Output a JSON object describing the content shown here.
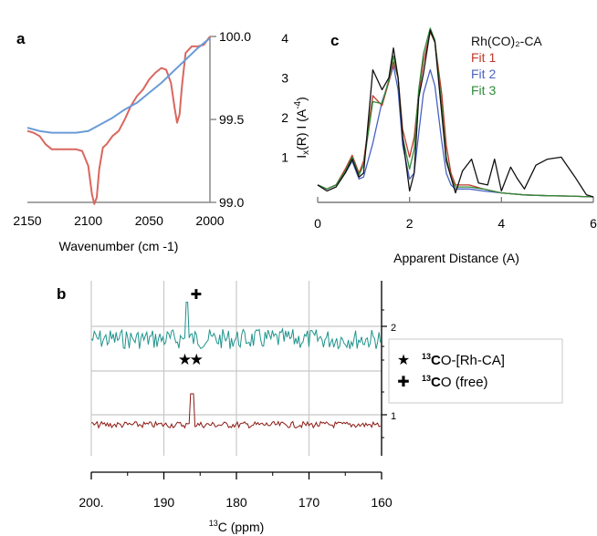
{
  "panels": {
    "a": {
      "letter": "a"
    },
    "b": {
      "letter": "b"
    },
    "c": {
      "letter": "c"
    }
  },
  "colors": {
    "ir_red": "#d9675f",
    "ir_blue": "#6a9bd8",
    "exafs_black": "#111111",
    "fit1": "#c0392b",
    "fit2": "#4a62c4",
    "fit3": "#2e8b3a",
    "nmr_top": "#1f948d",
    "nmr_bottom": "#8b1a14",
    "grid": "#c8c8c8"
  },
  "chart_data": [
    {
      "id": "a",
      "type": "line",
      "xlabel": "Wavenumber (cm -1)",
      "ylabel": "",
      "xlim": [
        2150,
        2000
      ],
      "ylim": [
        99.0,
        100.0
      ],
      "x_ticks": [
        "2150",
        "2100",
        "2050",
        "2000"
      ],
      "y_ticks": [
        "99.0",
        "99.5",
        "100.0"
      ],
      "grid": false,
      "series": [
        {
          "color_key": "ir_red",
          "x": [
            2150,
            2145,
            2140,
            2135,
            2130,
            2125,
            2120,
            2115,
            2110,
            2105,
            2100,
            2097,
            2095,
            2093,
            2091,
            2088,
            2085,
            2080,
            2075,
            2070,
            2065,
            2060,
            2055,
            2050,
            2045,
            2040,
            2036,
            2032,
            2029,
            2027,
            2025,
            2023,
            2020,
            2015,
            2010,
            2005,
            2000
          ],
          "y": [
            99.43,
            99.42,
            99.4,
            99.35,
            99.32,
            99.32,
            99.32,
            99.32,
            99.32,
            99.31,
            99.22,
            99.05,
            98.99,
            99.03,
            99.2,
            99.33,
            99.35,
            99.4,
            99.43,
            99.5,
            99.58,
            99.64,
            99.68,
            99.74,
            99.78,
            99.81,
            99.8,
            99.72,
            99.57,
            99.48,
            99.53,
            99.7,
            99.9,
            99.94,
            99.94,
            99.95,
            100.0
          ]
        },
        {
          "color_key": "ir_blue",
          "x": [
            2150,
            2140,
            2130,
            2120,
            2110,
            2100,
            2090,
            2080,
            2070,
            2060,
            2050,
            2040,
            2030,
            2020,
            2010,
            2000
          ],
          "y": [
            99.45,
            99.43,
            99.42,
            99.42,
            99.42,
            99.43,
            99.47,
            99.51,
            99.56,
            99.6,
            99.66,
            99.72,
            99.79,
            99.86,
            99.93,
            99.99
          ]
        }
      ]
    },
    {
      "id": "c",
      "type": "line",
      "xlabel": "Apparent Distance (A)",
      "ylabel": "I_x(R) I (A^-4)",
      "xlim": [
        0,
        6
      ],
      "ylim": [
        0,
        4.5
      ],
      "x_ticks": [
        "0",
        "2",
        "4",
        "6"
      ],
      "y_ticks": [
        "1",
        "2",
        "3",
        "4"
      ],
      "grid": false,
      "legend_position": "top-right",
      "legend": [
        {
          "label": "Rh(CO)₂-CA",
          "color_key": "exafs_black"
        },
        {
          "label": "Fit 1",
          "color_key": "fit1"
        },
        {
          "label": "Fit 2",
          "color_key": "fit2"
        },
        {
          "label": "Fit 3",
          "color_key": "fit3"
        }
      ],
      "series": [
        {
          "name": "Rh(CO)₂-CA",
          "color_key": "exafs_black",
          "x": [
            0,
            0.2,
            0.4,
            0.6,
            0.75,
            0.9,
            1.0,
            1.2,
            1.4,
            1.55,
            1.65,
            1.75,
            1.85,
            2.0,
            2.1,
            2.2,
            2.3,
            2.45,
            2.55,
            2.7,
            2.8,
            2.9,
            3.0,
            3.15,
            3.35,
            3.5,
            3.7,
            3.85,
            4.0,
            4.2,
            4.35,
            4.5,
            4.75,
            5.0,
            5.3,
            5.6,
            5.85,
            6.0
          ],
          "y": [
            0.3,
            0.15,
            0.25,
            0.6,
            0.95,
            0.5,
            0.6,
            3.2,
            2.7,
            3.0,
            3.75,
            3.0,
            1.5,
            0.15,
            0.6,
            2.5,
            3.1,
            4.2,
            3.9,
            2.1,
            0.9,
            0.5,
            0.1,
            0.65,
            0.95,
            0.35,
            0.3,
            0.95,
            0.15,
            0.75,
            0.45,
            0.2,
            0.8,
            0.95,
            1.0,
            0.5,
            0.05,
            0.0
          ]
        },
        {
          "name": "Fit 1",
          "color_key": "fit1",
          "x": [
            0,
            0.2,
            0.4,
            0.6,
            0.75,
            0.9,
            1.0,
            1.2,
            1.4,
            1.55,
            1.65,
            1.75,
            1.85,
            2.0,
            2.1,
            2.2,
            2.3,
            2.45,
            2.55,
            2.7,
            2.8,
            2.9,
            3.0,
            3.3,
            3.6,
            4.0,
            4.5,
            5.0,
            5.5,
            6.0
          ],
          "y": [
            0.3,
            0.2,
            0.3,
            0.7,
            1.05,
            0.6,
            0.9,
            2.55,
            2.3,
            2.9,
            3.4,
            3.0,
            1.7,
            1.0,
            1.5,
            2.6,
            3.4,
            4.15,
            3.9,
            2.6,
            1.3,
            0.6,
            0.3,
            0.3,
            0.2,
            0.1,
            0.05,
            0.03,
            0.02,
            0.0
          ]
        },
        {
          "name": "Fit 2",
          "color_key": "fit2",
          "x": [
            0,
            0.2,
            0.4,
            0.6,
            0.75,
            0.9,
            1.0,
            1.2,
            1.4,
            1.55,
            1.65,
            1.75,
            1.85,
            2.0,
            2.1,
            2.2,
            2.3,
            2.45,
            2.55,
            2.7,
            2.8,
            2.9,
            3.0,
            3.3,
            3.6,
            4.0,
            4.5,
            5.0,
            5.5,
            6.0
          ],
          "y": [
            0.3,
            0.2,
            0.3,
            0.6,
            0.9,
            0.45,
            0.5,
            1.35,
            2.4,
            2.9,
            3.3,
            2.7,
            1.3,
            0.45,
            0.6,
            1.6,
            2.6,
            3.2,
            2.8,
            1.4,
            0.6,
            0.3,
            0.2,
            0.2,
            0.15,
            0.1,
            0.05,
            0.03,
            0.02,
            0.0
          ]
        },
        {
          "name": "Fit 3",
          "color_key": "fit3",
          "x": [
            0,
            0.2,
            0.4,
            0.6,
            0.75,
            0.9,
            1.0,
            1.2,
            1.4,
            1.55,
            1.65,
            1.75,
            1.85,
            2.0,
            2.1,
            2.2,
            2.3,
            2.45,
            2.55,
            2.7,
            2.8,
            2.9,
            3.0,
            3.3,
            3.6,
            4.0,
            4.5,
            5.0,
            5.5,
            6.0
          ],
          "y": [
            0.3,
            0.2,
            0.3,
            0.65,
            1.0,
            0.55,
            0.8,
            2.4,
            2.35,
            2.95,
            3.55,
            3.0,
            1.5,
            0.7,
            1.2,
            2.7,
            3.6,
            4.25,
            3.95,
            2.3,
            1.0,
            0.5,
            0.25,
            0.25,
            0.2,
            0.1,
            0.05,
            0.03,
            0.02,
            0.0
          ]
        }
      ]
    },
    {
      "id": "b",
      "type": "line",
      "xlabel": "13C (ppm)",
      "xlabel_parts": {
        "sup": "13",
        "rest": "C (ppm)"
      },
      "ylabel": "",
      "xlim": [
        200,
        160
      ],
      "x_ticks": [
        "200.",
        "190",
        "180",
        "170",
        "160"
      ],
      "right_ticks": [
        "2",
        "1"
      ],
      "grid": true,
      "peaks": [
        {
          "trace": "top",
          "x": 186.8,
          "height": 0.9,
          "symbol": "✚"
        },
        {
          "trace": "bottom",
          "x": 186.3,
          "height": 0.85
        },
        {
          "trace": "bottom",
          "x": 186.0,
          "height": 0.85
        }
      ],
      "star_marks": [
        187.1,
        185.5
      ],
      "legend": [
        {
          "symbol": "★",
          "sup": "13",
          "bold": "C",
          "rest": "O-[Rh-CA]"
        },
        {
          "symbol": "✚",
          "sup": "13",
          "bold": "C",
          "rest": "O (free)"
        }
      ]
    }
  ]
}
